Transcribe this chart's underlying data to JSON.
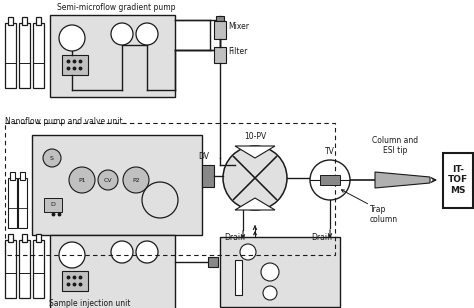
{
  "bg": "#f0f0f0",
  "white": "#ffffff",
  "lc": "#1a1a1a",
  "light_gray": "#e0e0e0",
  "mid_gray": "#c0c0c0",
  "dark_gray": "#888888",
  "tip_gray": "#b0b0b0",
  "title_semi": "Semi-microflow gradient pump",
  "title_nano": "Nanoflow pump and valve unit",
  "title_sample": "Sample injection unit",
  "label_mixer": "Mixer",
  "label_filter": "Filter",
  "label_10pv": "10-PV",
  "label_tv": "TV",
  "label_dv": "DV",
  "label_drain1": "Drain",
  "label_drain2": "Drain",
  "label_col_esi": "Column and\nESI tip",
  "label_trap": "Trap\ncolumn",
  "label_itof": "IT-\nTOF\nMS",
  "label_s": "S",
  "label_p1": "P1",
  "label_cv": "CV",
  "label_p2": "P2",
  "label_d": "D"
}
